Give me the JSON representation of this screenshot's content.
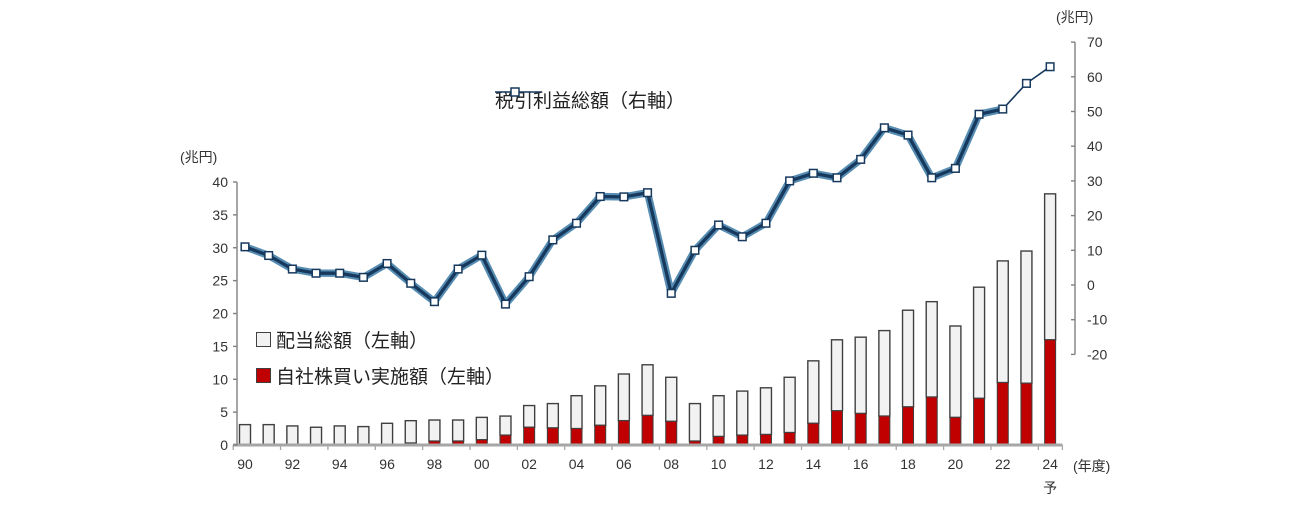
{
  "colors": {
    "background": "#ffffff",
    "axis_line": "#808080",
    "x_axis_line": "#a6a6a6",
    "text": "#333333",
    "bar_border": "#404040",
    "dividend_fill": "#f2f2f2",
    "buyback_fill": "#c00000",
    "line_core": "#16395d",
    "line_glow": "#2d709f",
    "marker_fill": "#ffffff"
  },
  "legend": {
    "line_label": "税引利益総額（右軸）",
    "dividend_label": "配当総額（左軸）",
    "buyback_label": "自社株買い実施額（左軸）"
  },
  "axes_units": {
    "left_unit": "(兆円)",
    "right_unit": "(兆円)",
    "x_unit": "(年度)"
  },
  "chart_data": {
    "type": "bar",
    "subtype": "stacked-bar-with-line-combo",
    "title": "",
    "categories": [
      "90",
      "91",
      "92",
      "93",
      "94",
      "95",
      "96",
      "97",
      "98",
      "99",
      "00",
      "01",
      "02",
      "03",
      "04",
      "05",
      "06",
      "07",
      "08",
      "09",
      "10",
      "11",
      "12",
      "13",
      "14",
      "15",
      "16",
      "17",
      "18",
      "19",
      "20",
      "21",
      "22",
      "23",
      "24予"
    ],
    "series": [
      {
        "name": "配当総額（左軸）",
        "type": "bar",
        "stack_position": "top",
        "axis": "left",
        "values": [
          3.1,
          3.1,
          2.9,
          2.7,
          2.9,
          2.8,
          3.2,
          3.4,
          3.2,
          3.2,
          3.4,
          2.9,
          3.3,
          3.7,
          5.0,
          6.0,
          7.1,
          7.7,
          6.7,
          5.7,
          6.2,
          6.7,
          7.1,
          8.4,
          9.5,
          10.8,
          11.6,
          13.0,
          14.7,
          14.5,
          13.9,
          16.9,
          18.5,
          20.1,
          22.2
        ]
      },
      {
        "name": "自社株買い実施額（左軸）",
        "type": "bar",
        "stack_position": "bottom",
        "axis": "left",
        "values": [
          0,
          0,
          0,
          0,
          0,
          0,
          0.1,
          0.3,
          0.6,
          0.6,
          0.8,
          1.5,
          2.7,
          2.6,
          2.5,
          3.0,
          3.7,
          4.5,
          3.6,
          0.6,
          1.3,
          1.5,
          1.6,
          1.9,
          3.3,
          5.2,
          4.8,
          4.4,
          5.8,
          7.3,
          4.2,
          7.1,
          9.5,
          9.4,
          16.0
        ]
      },
      {
        "name": "税引利益総額（右軸）",
        "type": "line",
        "axis": "right",
        "thin_from_index": 32,
        "values": [
          11.0,
          8.5,
          4.6,
          3.4,
          3.4,
          2.2,
          6.2,
          0.5,
          -4.8,
          4.6,
          8.6,
          -5.5,
          2.4,
          13.0,
          17.8,
          25.5,
          25.4,
          26.6,
          -2.4,
          10.0,
          17.3,
          13.9,
          17.8,
          30.0,
          32.2,
          30.9,
          36.2,
          45.3,
          43.2,
          30.9,
          33.6,
          49.2,
          50.7,
          58.1,
          62.9
        ]
      }
    ],
    "left_axis": {
      "label": "(兆円)",
      "min": 0,
      "max": 40,
      "tick_step": 5,
      "ticks": [
        0,
        5,
        10,
        15,
        20,
        25,
        30,
        35,
        40
      ]
    },
    "right_axis": {
      "label": "(兆円)",
      "min": -20,
      "max": 70,
      "tick_step": 10,
      "ticks": [
        -20,
        -10,
        0,
        10,
        20,
        30,
        40,
        50,
        60,
        70
      ]
    },
    "x_axis": {
      "label": "(年度)",
      "tick_labels": [
        "90",
        "92",
        "94",
        "96",
        "98",
        "00",
        "02",
        "04",
        "06",
        "08",
        "10",
        "12",
        "14",
        "16",
        "18",
        "20",
        "22",
        "24"
      ],
      "forecast_mark": "予"
    },
    "grid": false,
    "legend_position": "inside-plot"
  }
}
